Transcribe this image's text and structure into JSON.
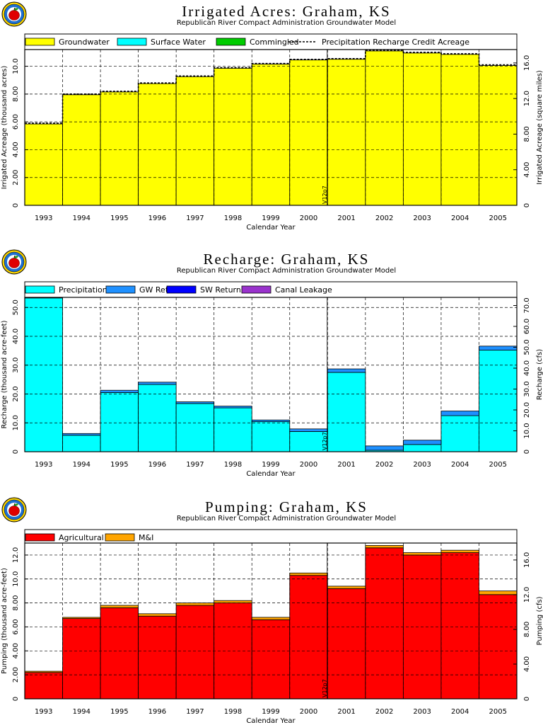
{
  "chart_data": [
    {
      "type": "area",
      "id": "irrigated",
      "title": "Irrigated Acres: Graham, KS",
      "subtitle": "Republican River Compact Administration Groundwater Model",
      "xlabel": "Calendar Year",
      "ylabel": "Irrigated Acreage (thousand acres)",
      "y2label": "Irrigated Acreage (square miles)",
      "categories": [
        "1993",
        "1994",
        "1995",
        "1996",
        "1997",
        "1998",
        "1999",
        "2000",
        "2001",
        "2002",
        "2003",
        "2004",
        "2005"
      ],
      "ylim": [
        0,
        11.2
      ],
      "yticks": [
        0,
        2,
        4,
        6,
        8,
        10
      ],
      "ytick_labels": [
        "0",
        "2.00",
        "4.00",
        "6.00",
        "8.00",
        "10.0"
      ],
      "y2lim": [
        0,
        17.5
      ],
      "y2ticks": [
        0,
        4,
        8,
        12,
        16
      ],
      "y2tick_labels": [
        "0",
        "4.00",
        "8.00",
        "12.0",
        "16.0"
      ],
      "series": [
        {
          "name": "Groundwater",
          "color": "#ffff00",
          "values": [
            5.85,
            7.95,
            8.15,
            8.75,
            9.25,
            9.85,
            10.15,
            10.45,
            10.5,
            11.1,
            10.95,
            10.85,
            10.05
          ]
        },
        {
          "name": "Surface Water",
          "color": "#00ffff",
          "values": [
            0,
            0,
            0,
            0,
            0,
            0,
            0,
            0,
            0,
            0,
            0,
            0,
            0
          ]
        },
        {
          "name": "Commingled",
          "color": "#00cc00",
          "values": [
            0,
            0,
            0,
            0,
            0,
            0,
            0,
            0,
            0,
            0,
            0,
            0,
            0
          ]
        },
        {
          "name": "Precipitation Recharge Credit Acreage",
          "color": "#000000",
          "style": "dashed",
          "values": [
            5.9,
            8.0,
            8.2,
            8.8,
            9.3,
            9.9,
            10.2,
            10.5,
            10.55,
            11.15,
            11.0,
            10.9,
            10.1
          ]
        }
      ],
      "annotation": "V12p7"
    },
    {
      "type": "area",
      "id": "recharge",
      "title": "Recharge: Graham, KS",
      "subtitle": "Republican River Compact Administration Groundwater Model",
      "xlabel": "Calendar Year",
      "ylabel": "Recharge (thousand acre-feet)",
      "y2label": "Recharge (cfs)",
      "categories": [
        "1993",
        "1994",
        "1995",
        "1996",
        "1997",
        "1998",
        "1999",
        "2000",
        "2001",
        "2002",
        "2003",
        "2004",
        "2005"
      ],
      "ylim": [
        0,
        53.5
      ],
      "yticks": [
        0,
        10,
        20,
        30,
        40,
        50
      ],
      "ytick_labels": [
        "0",
        "10.0",
        "20.0",
        "30.0",
        "40.0",
        "50.0"
      ],
      "y2lim": [
        0,
        73.9
      ],
      "y2ticks": [
        0,
        10,
        20,
        30,
        40,
        50,
        60,
        70
      ],
      "y2tick_labels": [
        "0",
        "10.0",
        "20.0",
        "30.0",
        "40.0",
        "50.0",
        "60.0",
        "70.0"
      ],
      "series": [
        {
          "name": "Precipitation",
          "color": "#00ffff",
          "values": [
            53.3,
            5.7,
            20.5,
            23.3,
            16.7,
            15.2,
            10.4,
            7.0,
            27.5,
            0.5,
            2.5,
            12.5,
            35.2
          ]
        },
        {
          "name": "GW Returns",
          "color": "#1e90ff",
          "values": [
            0.2,
            0.6,
            0.8,
            0.8,
            0.6,
            0.6,
            0.6,
            0.9,
            1.2,
            1.5,
            1.5,
            1.6,
            1.4
          ]
        },
        {
          "name": "SW Returns",
          "color": "#0000ff",
          "values": [
            0,
            0,
            0,
            0,
            0,
            0,
            0,
            0,
            0,
            0,
            0,
            0,
            0
          ]
        },
        {
          "name": "Canal Leakage",
          "color": "#9932cc",
          "values": [
            0,
            0,
            0,
            0,
            0,
            0,
            0,
            0,
            0,
            0,
            0,
            0,
            0
          ]
        }
      ],
      "annotation": "V12p7"
    },
    {
      "type": "area",
      "id": "pumping",
      "title": "Pumping: Graham, KS",
      "subtitle": "Republican River Compact Administration Groundwater Model",
      "xlabel": "Calendar Year",
      "ylabel": "Pumping (thousand acre-feet)",
      "y2label": "Pumping (cfs)",
      "categories": [
        "1993",
        "1994",
        "1995",
        "1996",
        "1997",
        "1998",
        "1999",
        "2000",
        "2001",
        "2002",
        "2003",
        "2004",
        "2005"
      ],
      "ylim": [
        0,
        13.0
      ],
      "yticks": [
        0,
        2,
        4,
        6,
        8,
        10,
        12
      ],
      "ytick_labels": [
        "0",
        "2.00",
        "4.00",
        "6.00",
        "8.00",
        "10.0",
        "12.0"
      ],
      "y2lim": [
        0,
        17.95
      ],
      "y2ticks": [
        0,
        4,
        8,
        12,
        16
      ],
      "y2tick_labels": [
        "0",
        "4.00",
        "8.00",
        "12.0",
        "16.0"
      ],
      "series": [
        {
          "name": "Agricultural",
          "color": "#ff0000",
          "values": [
            2.2,
            6.7,
            7.6,
            6.9,
            7.8,
            8.0,
            6.6,
            10.3,
            9.2,
            12.6,
            12.0,
            12.2,
            8.7
          ]
        },
        {
          "name": "M&I",
          "color": "#ffa500",
          "values": [
            0.1,
            0.1,
            0.2,
            0.2,
            0.2,
            0.2,
            0.2,
            0.2,
            0.2,
            0.2,
            0.2,
            0.2,
            0.3
          ]
        }
      ],
      "annotation": "V12p7"
    }
  ],
  "logo": {
    "name": "apple-logo"
  }
}
